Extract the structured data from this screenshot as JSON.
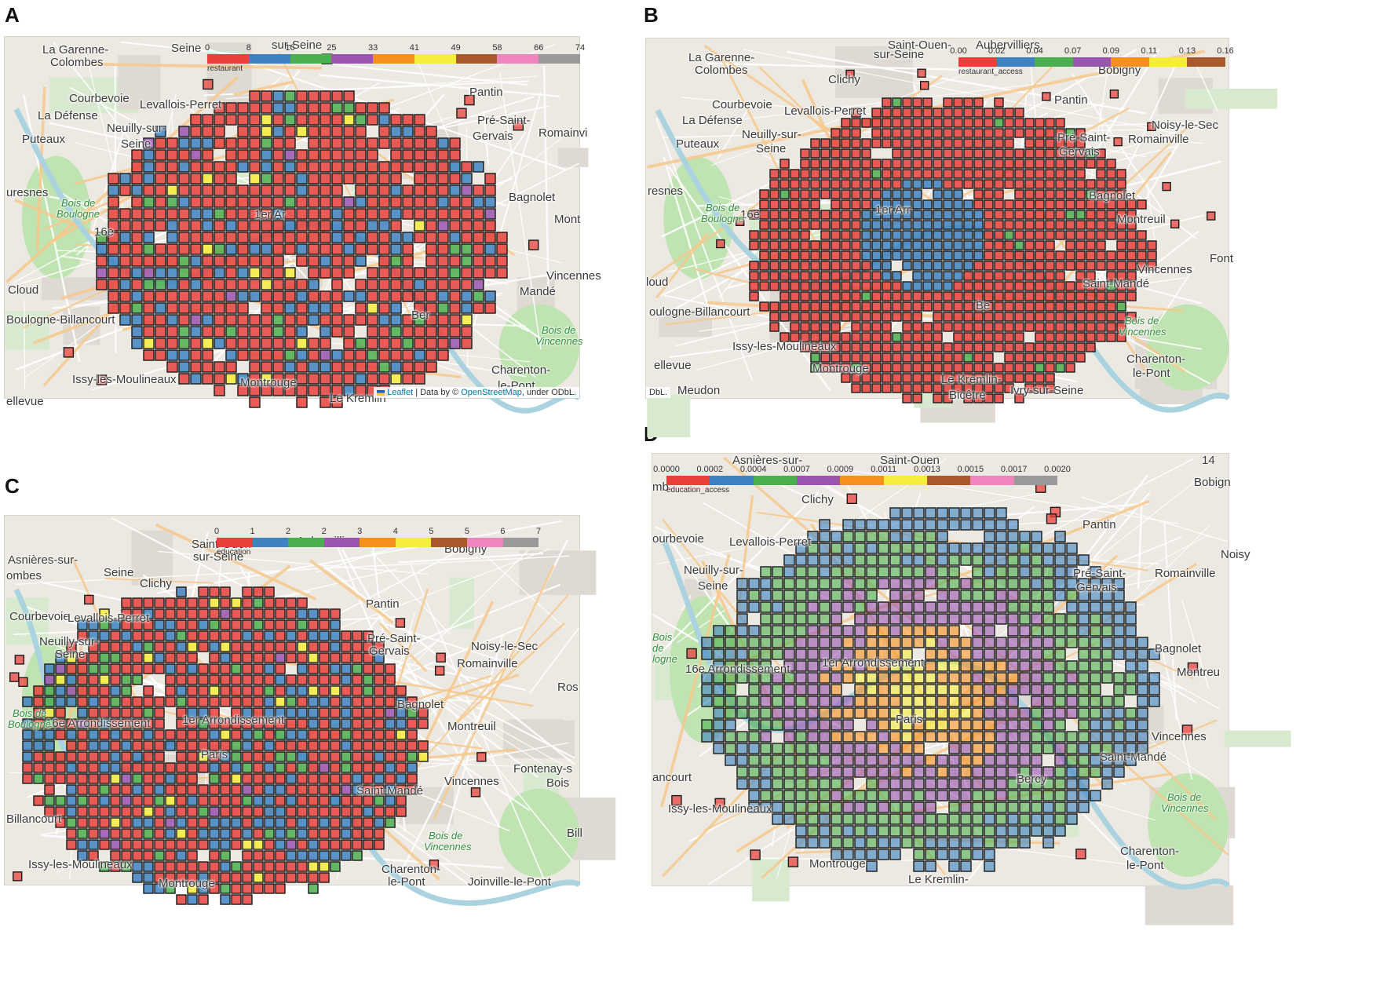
{
  "colors": {
    "palette": [
      "#e8413c",
      "#3e82c2",
      "#4caf4f",
      "#9a55b0",
      "#f6901e",
      "#f5ec3b",
      "#a9592a",
      "#ee86bd",
      "#999999"
    ],
    "park": "#bfe3b1",
    "water": "#aad3df",
    "road_major": "#f6c98e",
    "road_minor": "#ffffff"
  },
  "panels": [
    {
      "id": "A",
      "label": "A",
      "legend": {
        "ticks": [
          "0",
          "8",
          "16",
          "25",
          "33",
          "41",
          "49",
          "58",
          "66",
          "74"
        ],
        "caption": "restaurant"
      },
      "attribution": {
        "prefix": "Leaflet",
        "mid": " | Data by © ",
        "link": "OpenStreetMap",
        "suffix": ", under ODbL."
      },
      "places": [
        {
          "text": "La Garenne-",
          "x": 48,
          "y": 8
        },
        {
          "text": "Colombes",
          "x": 58,
          "y": 24
        },
        {
          "text": "Seine",
          "x": 212,
          "y": 6
        },
        {
          "text": "sur-Seine",
          "x": 340,
          "y": 2
        },
        {
          "text": "Courbevoie",
          "x": 82,
          "y": 70
        },
        {
          "text": "Levallois-Perret",
          "x": 172,
          "y": 78
        },
        {
          "text": "La Défense",
          "x": 42,
          "y": 92
        },
        {
          "text": "Neuilly-sur-",
          "x": 130,
          "y": 108
        },
        {
          "text": "Puteaux",
          "x": 22,
          "y": 122
        },
        {
          "text": "Seine",
          "x": 148,
          "y": 128
        },
        {
          "text": "Pantin",
          "x": 592,
          "y": 62
        },
        {
          "text": "Pré-Saint-",
          "x": 602,
          "y": 98
        },
        {
          "text": "Gervais",
          "x": 596,
          "y": 118
        },
        {
          "text": "Romainvi",
          "x": 680,
          "y": 114
        },
        {
          "text": "Bagnolet",
          "x": 642,
          "y": 196
        },
        {
          "text": "Mont",
          "x": 700,
          "y": 224
        },
        {
          "text": "Vincennes",
          "x": 690,
          "y": 296
        },
        {
          "text": "Mandé",
          "x": 656,
          "y": 316
        },
        {
          "text": "Cloud",
          "x": 4,
          "y": 314
        },
        {
          "text": "Boulogne-Billancourt",
          "x": 2,
          "y": 352
        },
        {
          "text": "Issy-les-Moulineaux",
          "x": 86,
          "y": 428
        },
        {
          "text": "Montrouge",
          "x": 300,
          "y": 432
        },
        {
          "text": "Charenton-",
          "x": 620,
          "y": 416
        },
        {
          "text": "le-Pont",
          "x": 628,
          "y": 436
        },
        {
          "text": "uresnes",
          "x": 2,
          "y": 190
        },
        {
          "text": "16e",
          "x": 114,
          "y": 240
        },
        {
          "text": "1er Ar",
          "x": 318,
          "y": 218
        },
        {
          "text": "Ber",
          "x": 518,
          "y": 346
        },
        {
          "text": "Le Kremlin",
          "x": 414,
          "y": 452
        },
        {
          "text": "ellevue",
          "x": 2,
          "y": 456
        }
      ],
      "parks": [
        {
          "text": "Bois de",
          "x": 72,
          "y": 204
        },
        {
          "text": "Boulogne",
          "x": 66,
          "y": 218
        },
        {
          "text": "Bois de",
          "x": 684,
          "y": 366
        },
        {
          "text": "Vincennes",
          "x": 676,
          "y": 380
        }
      ]
    },
    {
      "id": "B",
      "label": "B",
      "legend": {
        "ticks": [
          "0.00",
          "0.02",
          "0.04",
          "0.07",
          "0.09",
          "0.11",
          "0.13",
          "0.16"
        ],
        "caption": "restaurant_access"
      },
      "attribution": {
        "prefix": "",
        "mid": "",
        "link": "",
        "suffix": "DbL."
      },
      "places": [
        {
          "text": "Saint-Ouen-",
          "x": 308,
          "y": 0
        },
        {
          "text": "Aubervilliers",
          "x": 420,
          "y": -6
        },
        {
          "text": "La Garenne-",
          "x": 54,
          "y": 16
        },
        {
          "text": "sur-Seine",
          "x": 290,
          "y": 12
        },
        {
          "text": "Colombes",
          "x": 62,
          "y": 32
        },
        {
          "text": "Clichy",
          "x": 232,
          "y": 44
        },
        {
          "text": "Courbevoie",
          "x": 84,
          "y": 76
        },
        {
          "text": "Levallois-Perret",
          "x": 176,
          "y": 84
        },
        {
          "text": "La Défense",
          "x": 46,
          "y": 96
        },
        {
          "text": "Neuilly-sur-",
          "x": 122,
          "y": 114
        },
        {
          "text": "Puteaux",
          "x": 38,
          "y": 126
        },
        {
          "text": "Seine",
          "x": 140,
          "y": 132
        },
        {
          "text": "Pantin",
          "x": 520,
          "y": 70
        },
        {
          "text": "Noisy-le-Sec",
          "x": 644,
          "y": 102
        },
        {
          "text": "Pré-Saint-",
          "x": 524,
          "y": 118
        },
        {
          "text": "Romainville",
          "x": 614,
          "y": 120
        },
        {
          "text": "Gervais",
          "x": 526,
          "y": 136
        },
        {
          "text": "Bagnolet",
          "x": 564,
          "y": 192
        },
        {
          "text": "Montreuil",
          "x": 600,
          "y": 222
        },
        {
          "text": "Font",
          "x": 718,
          "y": 272
        },
        {
          "text": "Vincennes",
          "x": 626,
          "y": 286
        },
        {
          "text": "Saint-Mandé",
          "x": 556,
          "y": 304
        },
        {
          "text": "loud",
          "x": 0,
          "y": 302
        },
        {
          "text": "oulogne-Billancourt",
          "x": 4,
          "y": 340
        },
        {
          "text": "Issy-les-Moulineaux",
          "x": 110,
          "y": 384
        },
        {
          "text": "Montrouge",
          "x": 212,
          "y": 412
        },
        {
          "text": "Charenton-",
          "x": 612,
          "y": 400
        },
        {
          "text": "le-Pont",
          "x": 620,
          "y": 418
        },
        {
          "text": "Le Kremlin-",
          "x": 376,
          "y": 426
        },
        {
          "text": "Bicêtre",
          "x": 386,
          "y": 446
        },
        {
          "text": "Ivry-sur-Seine",
          "x": 464,
          "y": 440
        },
        {
          "text": "Meudon",
          "x": 40,
          "y": 440
        },
        {
          "text": "ellevue",
          "x": 10,
          "y": 408
        },
        {
          "text": "resnes",
          "x": 2,
          "y": 186
        },
        {
          "text": "16e",
          "x": 120,
          "y": 216
        },
        {
          "text": "1er Arr",
          "x": 292,
          "y": 210
        },
        {
          "text": "Bobigny",
          "x": 576,
          "y": 32
        },
        {
          "text": "Be",
          "x": 420,
          "y": 332
        }
      ],
      "parks": [
        {
          "text": "Bois de",
          "x": 76,
          "y": 208
        },
        {
          "text": "Boulogne",
          "x": 70,
          "y": 222
        },
        {
          "text": "Bois de",
          "x": 610,
          "y": 352
        },
        {
          "text": "Vincennes",
          "x": 602,
          "y": 366
        }
      ]
    },
    {
      "id": "C",
      "label": "C",
      "legend": {
        "ticks": [
          "0",
          "1",
          "2",
          "2",
          "3",
          "4",
          "5",
          "5",
          "6",
          "7"
        ],
        "caption": "education"
      },
      "attribution": {
        "prefix": "",
        "mid": "",
        "link": "",
        "suffix": ""
      },
      "places": [
        {
          "text": "Asnières-sur-",
          "x": 4,
          "y": 48
        },
        {
          "text": "Saint-Ouen-",
          "x": 238,
          "y": 28
        },
        {
          "text": "Aubervilliers",
          "x": 372,
          "y": 24
        },
        {
          "text": "ombes",
          "x": 2,
          "y": 68
        },
        {
          "text": "Seine",
          "x": 126,
          "y": 64
        },
        {
          "text": "sur-Seine",
          "x": 240,
          "y": 44
        },
        {
          "text": "Bobigny",
          "x": 560,
          "y": 34
        },
        {
          "text": "Clichy",
          "x": 172,
          "y": 78
        },
        {
          "text": "Courbevoie",
          "x": 6,
          "y": 120
        },
        {
          "text": "Levallois-Perret",
          "x": 80,
          "y": 122
        },
        {
          "text": "Pantin",
          "x": 460,
          "y": 104
        },
        {
          "text": "Neuilly-sur-",
          "x": 44,
          "y": 152
        },
        {
          "text": "Pré-Saint-",
          "x": 462,
          "y": 148
        },
        {
          "text": "Noisy-le-Sec",
          "x": 594,
          "y": 158
        },
        {
          "text": "Seine",
          "x": 64,
          "y": 168
        },
        {
          "text": "Gervais",
          "x": 464,
          "y": 164
        },
        {
          "text": "Romainville",
          "x": 576,
          "y": 180
        },
        {
          "text": "Ros",
          "x": 704,
          "y": 210
        },
        {
          "text": "Bagnolet",
          "x": 500,
          "y": 232
        },
        {
          "text": "Montreuil",
          "x": 564,
          "y": 260
        },
        {
          "text": "16e Arrondissement",
          "x": 52,
          "y": 256
        },
        {
          "text": "1er Arrondissement",
          "x": 226,
          "y": 252
        },
        {
          "text": "Fontenay-s",
          "x": 648,
          "y": 314
        },
        {
          "text": "Bois",
          "x": 690,
          "y": 332
        },
        {
          "text": "Vincennes",
          "x": 560,
          "y": 330
        },
        {
          "text": "Saint-Mandé",
          "x": 448,
          "y": 342
        },
        {
          "text": "Billancourt",
          "x": 2,
          "y": 378
        },
        {
          "text": "Issy-les-Moulineaux",
          "x": 30,
          "y": 436
        },
        {
          "text": "Montrouge",
          "x": 196,
          "y": 460
        },
        {
          "text": "Charenton-",
          "x": 480,
          "y": 442
        },
        {
          "text": "le-Pont",
          "x": 488,
          "y": 458
        },
        {
          "text": "Joinville-le-Pont",
          "x": 590,
          "y": 458
        },
        {
          "text": "Paris",
          "x": 250,
          "y": 296
        },
        {
          "text": "Bill",
          "x": 716,
          "y": 396
        }
      ],
      "parks": [
        {
          "text": "Bois de",
          "x": 10,
          "y": 244
        },
        {
          "text": "Boulogne",
          "x": 4,
          "y": 258
        },
        {
          "text": "Bois de",
          "x": 540,
          "y": 400
        },
        {
          "text": "Vincennes",
          "x": 534,
          "y": 414
        }
      ]
    },
    {
      "id": "D",
      "label": "D",
      "legend": {
        "ticks": [
          "0.0000",
          "0.0002",
          "0.0004",
          "0.0007",
          "0.0009",
          "0.0011",
          "0.0013",
          "0.0015",
          "0.0017",
          "0.0020"
        ],
        "caption": "education_access"
      },
      "attribution": {
        "prefix": "",
        "mid": "",
        "link": "",
        "suffix": ""
      },
      "places": [
        {
          "text": "Asnières-sur-",
          "x": 102,
          "y": -4
        },
        {
          "text": "Saint-Ouen",
          "x": 290,
          "y": -8
        },
        {
          "text": "14",
          "x": 700,
          "y": -2
        },
        {
          "text": "Bobign",
          "x": 690,
          "y": 28
        },
        {
          "text": "mb",
          "x": 0,
          "y": 34
        },
        {
          "text": "Clichy",
          "x": 190,
          "y": 50
        },
        {
          "text": "ourbevoie",
          "x": 0,
          "y": 100
        },
        {
          "text": "Levallois-Perret",
          "x": 98,
          "y": 104
        },
        {
          "text": "Pantin",
          "x": 548,
          "y": 82
        },
        {
          "text": "Noisy",
          "x": 724,
          "y": 120
        },
        {
          "text": "Neuilly-sur-",
          "x": 40,
          "y": 140
        },
        {
          "text": "Pré-Saint-",
          "x": 536,
          "y": 144
        },
        {
          "text": "Romainville",
          "x": 640,
          "y": 144
        },
        {
          "text": "Seine",
          "x": 58,
          "y": 160
        },
        {
          "text": "Gervais",
          "x": 540,
          "y": 162
        },
        {
          "text": "Bagnolet",
          "x": 640,
          "y": 240
        },
        {
          "text": "Montreu",
          "x": 668,
          "y": 270
        },
        {
          "text": "16e Arrondissement",
          "x": 42,
          "y": 266
        },
        {
          "text": "1er Arrondissement",
          "x": 216,
          "y": 258
        },
        {
          "text": "Vincennes",
          "x": 636,
          "y": 352
        },
        {
          "text": "Saint-Mandé",
          "x": 570,
          "y": 378
        },
        {
          "text": "ancourt",
          "x": 0,
          "y": 404
        },
        {
          "text": "Issy-les-Moulineaux",
          "x": 20,
          "y": 444
        },
        {
          "text": "Montrouge",
          "x": 200,
          "y": 514
        },
        {
          "text": "Charenton-",
          "x": 596,
          "y": 498
        },
        {
          "text": "le-Pont",
          "x": 604,
          "y": 516
        },
        {
          "text": "Le Kremlin-",
          "x": 326,
          "y": 534
        },
        {
          "text": "Paris",
          "x": 310,
          "y": 330
        },
        {
          "text": "Bercy",
          "x": 464,
          "y": 406
        }
      ],
      "parks": [
        {
          "text": "Bois",
          "x": 0,
          "y": 226
        },
        {
          "text": "de",
          "x": 0,
          "y": 240
        },
        {
          "text": "logne",
          "x": 0,
          "y": 254
        },
        {
          "text": "Bois de",
          "x": 656,
          "y": 430
        },
        {
          "text": "Vincennes",
          "x": 648,
          "y": 444
        }
      ]
    }
  ]
}
